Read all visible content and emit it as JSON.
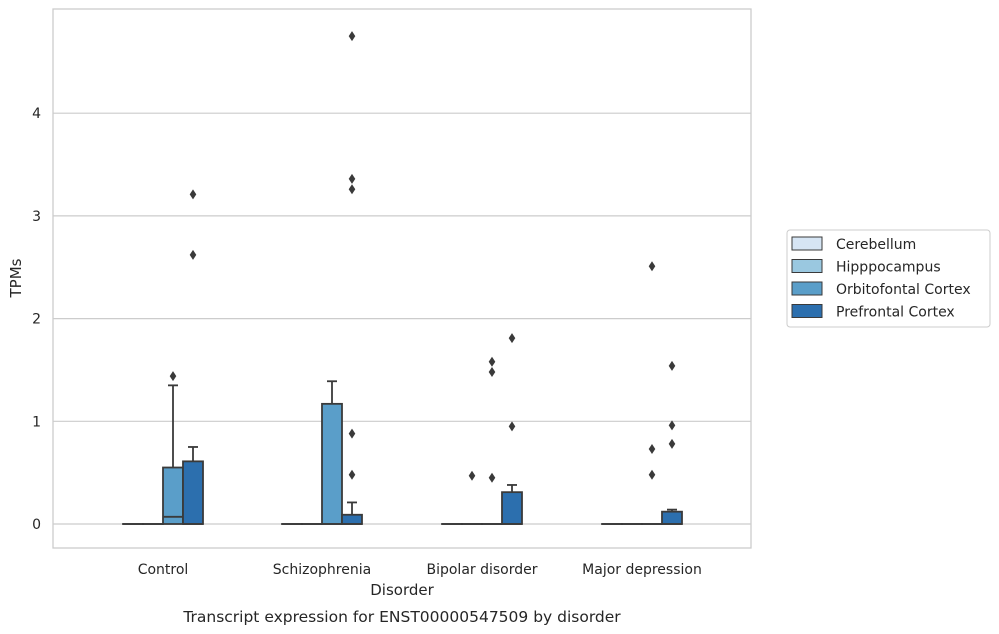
{
  "chart_data": {
    "type": "box",
    "title": "Transcript expression for ENST00000547509 by disorder",
    "xlabel": "Disorder",
    "ylabel": "TPMs",
    "ylim": [
      -0.23,
      4.98
    ],
    "yticks": [
      0,
      1,
      2,
      3,
      4
    ],
    "ytick_labels": [
      "0",
      "1",
      "2",
      "3",
      "4"
    ],
    "categories": [
      "Control",
      "Schizophrenia",
      "Bipolar disorder",
      "Major depression"
    ],
    "grid": "horizontal",
    "legend_position": "right",
    "series": [
      {
        "name": "Cerebellum",
        "color": "#d6e5f4",
        "boxes": [
          {
            "q1": 0,
            "median": 0,
            "q3": 0,
            "whisker_low": 0,
            "whisker_high": 0,
            "outliers": []
          },
          {
            "q1": 0,
            "median": 0,
            "q3": 0,
            "whisker_low": 0,
            "whisker_high": 0,
            "outliers": []
          },
          {
            "q1": 0,
            "median": 0,
            "q3": 0,
            "whisker_low": 0,
            "whisker_high": 0,
            "outliers": []
          },
          {
            "q1": 0,
            "median": 0,
            "q3": 0,
            "whisker_low": 0,
            "whisker_high": 0,
            "outliers": []
          }
        ]
      },
      {
        "name": "Hipppocampus",
        "color": "#9ac8e0",
        "boxes": [
          {
            "q1": 0,
            "median": 0,
            "q3": 0,
            "whisker_low": 0,
            "whisker_high": 0,
            "outliers": []
          },
          {
            "q1": 0,
            "median": 0,
            "q3": 0,
            "whisker_low": 0,
            "whisker_high": 0,
            "outliers": []
          },
          {
            "q1": 0,
            "median": 0,
            "q3": 0,
            "whisker_low": 0,
            "whisker_high": 0,
            "outliers": [
              0.47
            ]
          },
          {
            "q1": 0,
            "median": 0,
            "q3": 0,
            "whisker_low": 0,
            "whisker_high": 0,
            "outliers": []
          }
        ]
      },
      {
        "name": "Orbitofontal Cortex",
        "color": "#5a9ec9",
        "boxes": [
          {
            "q1": 0,
            "median": 0.07,
            "q3": 0.55,
            "whisker_low": 0,
            "whisker_high": 1.35,
            "outliers": [
              1.44
            ]
          },
          {
            "q1": 0,
            "median": 0,
            "q3": 1.17,
            "whisker_low": 0,
            "whisker_high": 1.39,
            "outliers": []
          },
          {
            "q1": 0,
            "median": 0,
            "q3": 0,
            "whisker_low": 0,
            "whisker_high": 0,
            "outliers": [
              0.45,
              1.48,
              1.58
            ]
          },
          {
            "q1": 0,
            "median": 0,
            "q3": 0,
            "whisker_low": 0,
            "whisker_high": 0,
            "outliers": [
              0.48,
              0.73,
              2.51
            ]
          }
        ]
      },
      {
        "name": "Prefrontal Cortex",
        "color": "#2c6fae",
        "boxes": [
          {
            "q1": 0,
            "median": 0,
            "q3": 0.61,
            "whisker_low": 0,
            "whisker_high": 0.75,
            "outliers": [
              2.62,
              3.21
            ]
          },
          {
            "q1": 0,
            "median": 0,
            "q3": 0.09,
            "whisker_low": 0,
            "whisker_high": 0.21,
            "outliers": [
              0.48,
              0.88,
              3.26,
              3.36,
              4.75
            ]
          },
          {
            "q1": 0,
            "median": 0,
            "q3": 0.31,
            "whisker_low": 0,
            "whisker_high": 0.38,
            "outliers": [
              0.95,
              1.81
            ]
          },
          {
            "q1": 0,
            "median": 0,
            "q3": 0.12,
            "whisker_low": 0,
            "whisker_high": 0.14,
            "outliers": [
              0.78,
              0.96,
              1.54
            ]
          }
        ]
      }
    ]
  }
}
